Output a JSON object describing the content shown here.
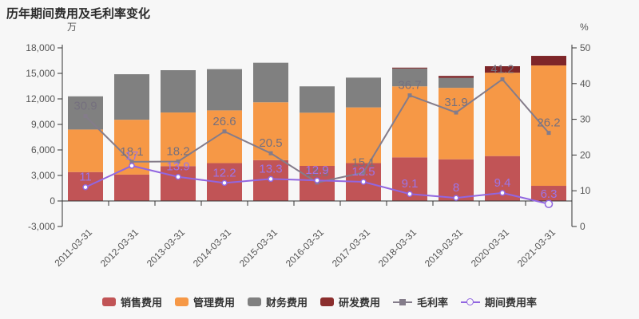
{
  "page": {
    "background": "#f7f7f7"
  },
  "header": {
    "title": "历年期间费用及毛利率变化"
  },
  "chart_data": {
    "type": "bar",
    "subtype": "stacked-bar-with-lines",
    "categories": [
      "2011-03-31",
      "2012-03-31",
      "2013-03-31",
      "2014-03-31",
      "2015-03-31",
      "2016-03-31",
      "2017-03-31",
      "2018-03-31",
      "2019-03-31",
      "2020-03-31",
      "2021-03-31"
    ],
    "bar_series": [
      {
        "name": "销售费用",
        "key": "sales-expense",
        "color": "#c15456",
        "values": [
          3400,
          3100,
          4100,
          4450,
          4800,
          4125,
          4450,
          5125,
          4900,
          5280,
          1780
        ]
      },
      {
        "name": "管理费用",
        "key": "admin-expense",
        "color": "#f69846",
        "values": [
          5000,
          6450,
          6300,
          6200,
          6800,
          6250,
          6550,
          8350,
          8400,
          9800,
          14150
        ]
      },
      {
        "name": "财务费用",
        "key": "finance-expense",
        "color": "#808080",
        "values": [
          3900,
          5350,
          4975,
          4850,
          4650,
          3100,
          3500,
          2100,
          1170,
          0,
          0
        ]
      },
      {
        "name": "研发费用",
        "key": "rd-expense",
        "color": "#7e2629",
        "values": [
          0,
          0,
          0,
          0,
          0,
          0,
          0,
          100,
          230,
          760,
          1130
        ]
      }
    ],
    "line_series": [
      {
        "name": "毛利率",
        "key": "gross-margin",
        "color": "#847c8a",
        "label_color": "#75707e",
        "marker": "square",
        "values": [
          30.9,
          18.1,
          18.2,
          26.6,
          20.5,
          12.3,
          15.1,
          36.7,
          31.9,
          41.2,
          26.2
        ]
      },
      {
        "name": "期间费用率",
        "key": "period-expense-ratio",
        "color": "#9166e0",
        "label_color": "#9d74e6",
        "marker": "circle",
        "values": [
          11,
          17,
          13.9,
          12.2,
          13.3,
          12.9,
          12.5,
          9.1,
          8,
          9.4,
          6.3
        ]
      }
    ],
    "y_left": {
      "unit": "万",
      "min": -3000,
      "max": 18000,
      "tick_values": [
        18000,
        15000,
        12000,
        9000,
        6000,
        3000,
        0,
        -3000
      ],
      "tick_labels": [
        "18,000",
        "15,000",
        "12,000",
        "9,000",
        "6,000",
        "3,000",
        "0",
        "-3,000"
      ]
    },
    "y_right": {
      "unit": "%",
      "min": 0,
      "max": 50,
      "tick_values": [
        50,
        40,
        30,
        20,
        10,
        0
      ],
      "tick_labels": [
        "50",
        "40",
        "30",
        "20",
        "10",
        "0"
      ]
    },
    "grid": "off",
    "legend_position": "bottom"
  },
  "legend": {
    "items": [
      {
        "label": "销售费用",
        "key": "sales-expense",
        "type": "bar",
        "color": "#c15456"
      },
      {
        "label": "管理费用",
        "key": "admin-expense",
        "type": "bar",
        "color": "#f69846"
      },
      {
        "label": "财务费用",
        "key": "finance-expense",
        "type": "bar",
        "color": "#808080"
      },
      {
        "label": "研发费用",
        "key": "rd-expense",
        "type": "bar",
        "color": "#8b2e2d"
      },
      {
        "label": "毛利率",
        "key": "gross-margin",
        "type": "line-square",
        "color": "#847c8a"
      },
      {
        "label": "期间费用率",
        "key": "period-expense-ratio",
        "type": "line-circle",
        "color": "#9166e0"
      }
    ]
  }
}
